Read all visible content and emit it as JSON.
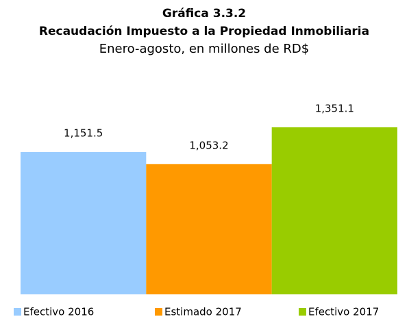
{
  "chart_data": {
    "type": "bar",
    "title": "Gráfica 3.3.2",
    "subtitle": "Recaudación Impuesto a la Propiedad Inmobiliaria",
    "note": "Enero-agosto, en millones de RD$",
    "series": [
      {
        "name": "Efectivo 2016",
        "color": "#99ccff",
        "values": [
          1151.5
        ],
        "value_labels": [
          "1,151.5"
        ]
      },
      {
        "name": "Estimado 2017",
        "color": "#ff9900",
        "values": [
          1053.2
        ],
        "value_labels": [
          "1,053.2"
        ]
      },
      {
        "name": "Efectivo 2017",
        "color": "#99cc00",
        "values": [
          1351.1
        ],
        "value_labels": [
          "1,351.1"
        ]
      }
    ]
  }
}
